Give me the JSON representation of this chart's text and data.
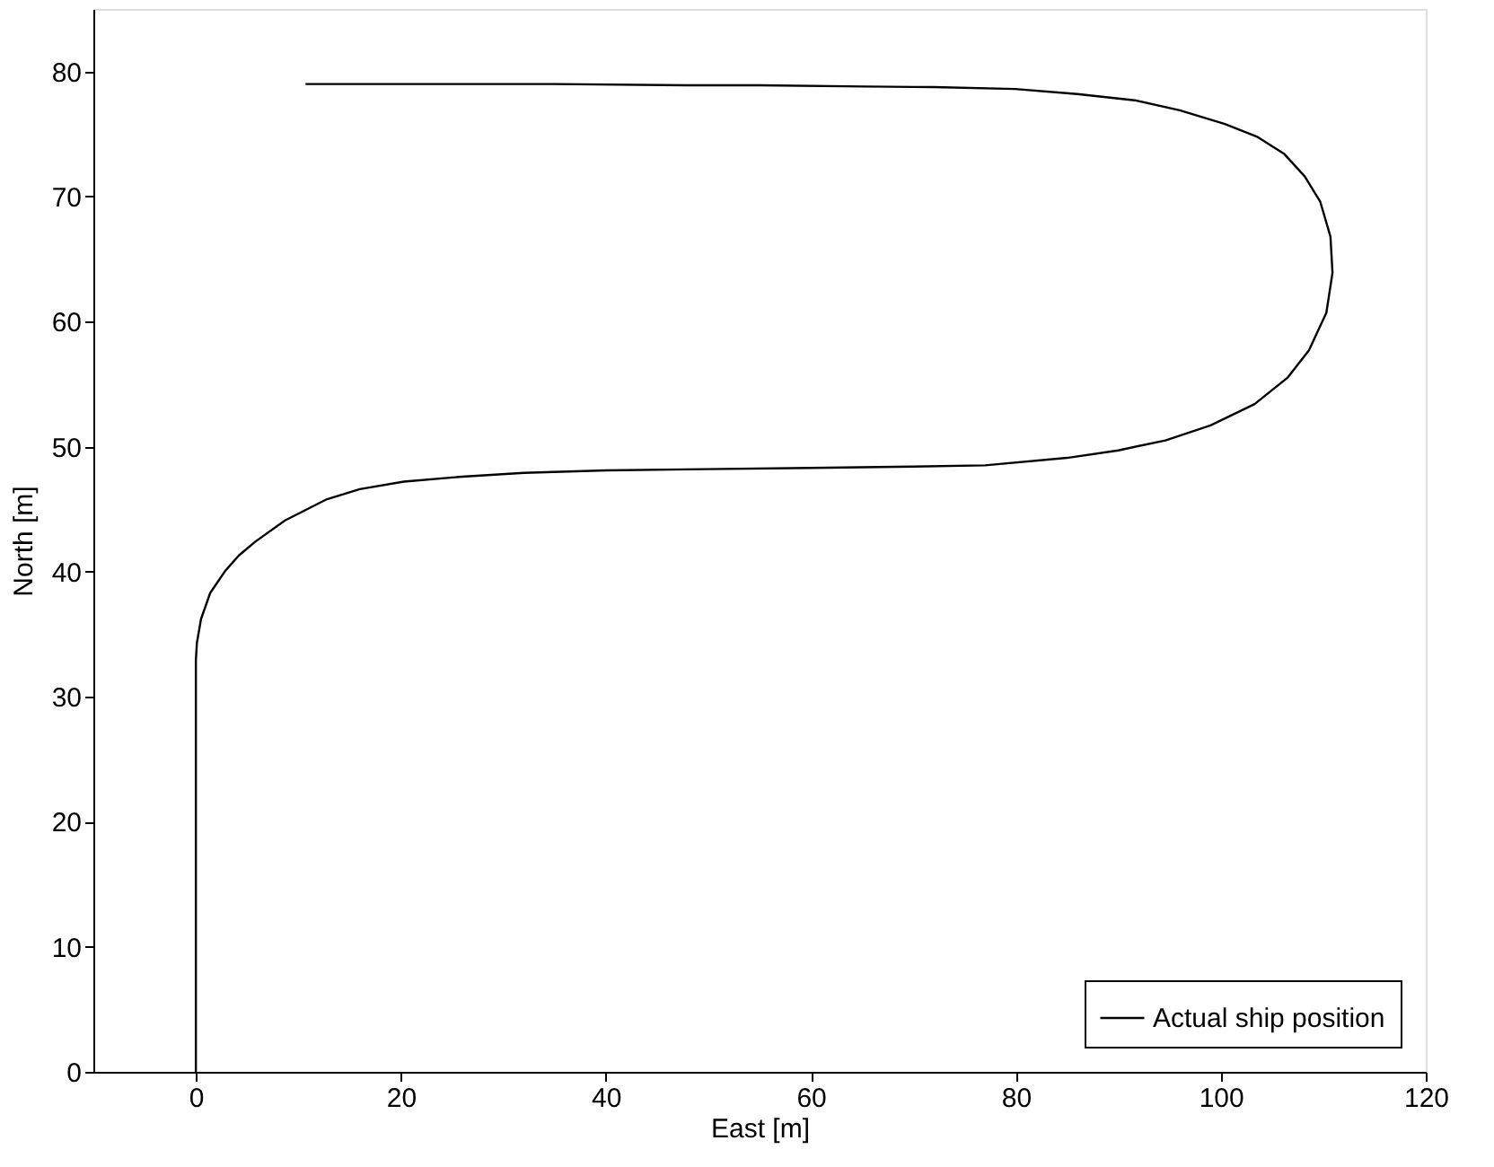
{
  "chart_data": {
    "type": "line",
    "xlabel": "East [m]",
    "ylabel": "North [m]",
    "xlim": [
      -10,
      120
    ],
    "xticks": [
      0,
      20,
      40,
      60,
      80,
      100,
      120
    ],
    "ylim": [
      0,
      85
    ],
    "yticks": [
      0,
      10,
      20,
      30,
      40,
      50,
      60,
      70,
      80
    ],
    "grid": false,
    "legend": "bottom right",
    "line_style": "solid",
    "marker": "none",
    "series": [
      {
        "name": "Actual ship position",
        "color": "#000000",
        "x": [
          0,
          0,
          0,
          0.1,
          0.5,
          1.4,
          2.9,
          4.2,
          5.8,
          8.7,
          12.8,
          16,
          20.3,
          26,
          32,
          40,
          49.6,
          60,
          70,
          77,
          85,
          90,
          94.6,
          99,
          103.3,
          106.5,
          108.6,
          110.3,
          110.9,
          110.7,
          109.7,
          108.2,
          106.2,
          103.5,
          100.4,
          96,
          91.6,
          86,
          79.9,
          72,
          65.3,
          55,
          47.8,
          35,
          20,
          10.7
        ],
        "values": [
          0,
          20,
          32.9,
          34.3,
          36.2,
          38.3,
          40.1,
          41.3,
          42.4,
          44.1,
          45.8,
          46.6,
          47.2,
          47.6,
          47.9,
          48.1,
          48.2,
          48.3,
          48.4,
          48.5,
          49.1,
          49.7,
          50.5,
          51.7,
          53.4,
          55.5,
          57.7,
          60.7,
          63.9,
          66.8,
          69.6,
          71.6,
          73.4,
          74.8,
          75.8,
          76.9,
          77.7,
          78.2,
          78.6,
          78.75,
          78.8,
          78.9,
          78.9,
          79,
          79,
          79
        ]
      }
    ]
  }
}
